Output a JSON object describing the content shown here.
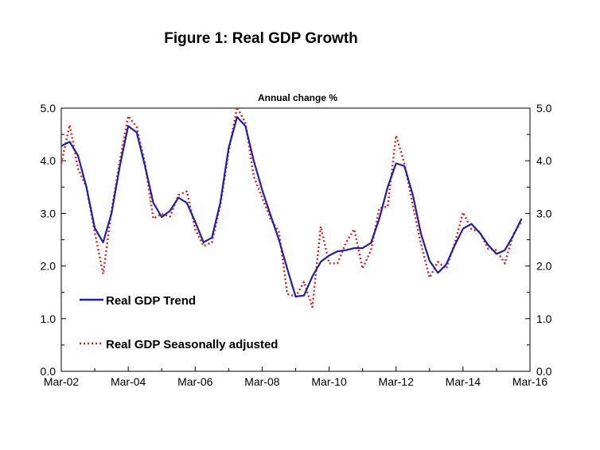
{
  "chart_data": {
    "type": "line",
    "title": "Figure 1: Real GDP Growth",
    "subtitle": "Annual change %",
    "ylim": [
      0,
      5
    ],
    "y_ticks": [
      "0.0",
      "1.0",
      "2.0",
      "3.0",
      "4.0",
      "5.0"
    ],
    "y_ticks_right": [
      "0.0",
      "1.0",
      "2.0",
      "3.0",
      "4.0",
      "5.0"
    ],
    "x_ticks": [
      "Mar-02",
      "Mar-04",
      "Mar-06",
      "Mar-08",
      "Mar-10",
      "Mar-12",
      "Mar-14",
      "Mar-16"
    ],
    "x_range": [
      0,
      56
    ],
    "grid": false,
    "legend_position": "bottom-left",
    "series": [
      {
        "name": "Real GDP Trend",
        "color": "#1f1fa8",
        "style": "solid",
        "x": [
          0,
          1,
          2,
          3,
          4,
          5,
          6,
          7,
          8,
          9,
          10,
          11,
          12,
          13,
          14,
          15,
          16,
          17,
          18,
          19,
          20,
          21,
          22,
          23,
          24,
          25,
          26,
          27,
          28,
          29,
          30,
          31,
          32,
          33,
          34,
          35,
          36,
          37,
          38,
          39,
          40,
          41,
          42,
          43,
          44,
          45,
          46,
          47,
          48,
          49,
          50,
          51,
          52,
          53,
          54,
          55
        ],
        "values": [
          4.28,
          4.36,
          4.1,
          3.5,
          2.72,
          2.45,
          3.0,
          3.9,
          4.66,
          4.54,
          3.9,
          3.2,
          2.93,
          3.05,
          3.3,
          3.2,
          2.84,
          2.45,
          2.54,
          3.2,
          4.25,
          4.83,
          4.66,
          4.0,
          3.45,
          2.97,
          2.5,
          1.95,
          1.42,
          1.44,
          1.8,
          2.08,
          2.2,
          2.28,
          2.3,
          2.34,
          2.34,
          2.44,
          2.9,
          3.5,
          3.95,
          3.9,
          3.35,
          2.6,
          2.1,
          1.87,
          2.03,
          2.39,
          2.71,
          2.8,
          2.63,
          2.4,
          2.23,
          2.3,
          2.58,
          2.9
        ]
      },
      {
        "name": "Real GDP Seasonally adjusted",
        "color": "#d92020",
        "style": "dotted",
        "x": [
          0,
          1,
          2,
          3,
          4,
          5,
          6,
          7,
          8,
          9,
          10,
          11,
          12,
          13,
          14,
          15,
          16,
          17,
          18,
          19,
          20,
          21,
          22,
          23,
          24,
          25,
          26,
          27,
          28,
          29,
          30,
          31,
          32,
          33,
          34,
          35,
          36,
          37,
          38,
          39,
          40,
          41,
          42,
          43,
          44,
          45,
          46,
          47,
          48,
          49,
          50,
          51,
          52,
          53,
          54,
          55
        ],
        "values": [
          3.95,
          4.68,
          3.85,
          3.5,
          2.64,
          1.85,
          3.05,
          4.0,
          4.85,
          4.64,
          3.95,
          2.9,
          2.99,
          2.94,
          3.35,
          3.42,
          2.7,
          2.38,
          2.45,
          3.15,
          4.18,
          5.02,
          4.72,
          3.7,
          3.3,
          2.9,
          2.65,
          1.47,
          1.42,
          1.7,
          1.22,
          2.75,
          2.05,
          2.05,
          2.44,
          2.7,
          1.95,
          2.3,
          3.1,
          3.13,
          4.48,
          3.95,
          3.15,
          2.4,
          1.78,
          2.08,
          1.95,
          2.42,
          3.02,
          2.7,
          2.65,
          2.33,
          2.3,
          2.05,
          2.6,
          2.85
        ]
      }
    ]
  }
}
